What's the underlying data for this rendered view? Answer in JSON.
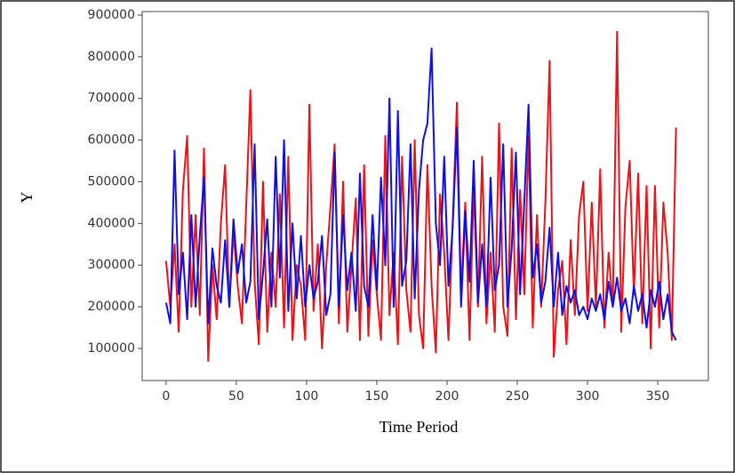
{
  "chart_data": {
    "type": "line",
    "xlabel": "Time Period",
    "ylabel": "Y",
    "x": [
      0,
      3,
      6,
      9,
      12,
      15,
      18,
      21,
      24,
      27,
      30,
      33,
      36,
      39,
      42,
      45,
      48,
      51,
      54,
      57,
      60,
      63,
      66,
      69,
      72,
      75,
      78,
      81,
      84,
      87,
      90,
      93,
      96,
      99,
      102,
      105,
      108,
      111,
      114,
      117,
      120,
      123,
      126,
      129,
      132,
      135,
      138,
      141,
      144,
      147,
      150,
      153,
      156,
      159,
      162,
      165,
      168,
      171,
      174,
      177,
      180,
      183,
      186,
      189,
      192,
      195,
      198,
      201,
      204,
      207,
      210,
      213,
      216,
      219,
      222,
      225,
      228,
      231,
      234,
      237,
      240,
      243,
      246,
      249,
      252,
      255,
      258,
      261,
      264,
      267,
      270,
      273,
      276,
      279,
      282,
      285,
      288,
      291,
      294,
      297,
      300,
      303,
      306,
      309,
      312,
      315,
      318,
      321,
      324,
      327,
      330,
      333,
      336,
      339,
      342,
      345,
      348,
      351,
      354,
      357,
      360,
      363
    ],
    "series": [
      {
        "color": "#e8141a",
        "values": [
          310000,
          200000,
          350000,
          140000,
          480000,
          610000,
          200000,
          420000,
          180000,
          580000,
          70000,
          300000,
          170000,
          400000,
          540000,
          200000,
          380000,
          250000,
          160000,
          440000,
          720000,
          260000,
          110000,
          500000,
          140000,
          330000,
          200000,
          470000,
          150000,
          560000,
          120000,
          300000,
          250000,
          120000,
          685000,
          190000,
          350000,
          100000,
          300000,
          440000,
          590000,
          160000,
          500000,
          140000,
          300000,
          460000,
          120000,
          540000,
          130000,
          360000,
          230000,
          120000,
          610000,
          180000,
          330000,
          110000,
          560000,
          240000,
          140000,
          600000,
          180000,
          100000,
          540000,
          250000,
          90000,
          470000,
          330000,
          120000,
          400000,
          690000,
          230000,
          450000,
          120000,
          490000,
          200000,
          560000,
          160000,
          330000,
          140000,
          640000,
          200000,
          130000,
          580000,
          170000,
          480000,
          230000,
          610000,
          150000,
          420000,
          200000,
          450000,
          790000,
          80000,
          240000,
          310000,
          110000,
          360000,
          180000,
          420000,
          500000,
          190000,
          450000,
          200000,
          530000,
          150000,
          330000,
          200000,
          860000,
          140000,
          440000,
          550000,
          230000,
          520000,
          160000,
          490000,
          100000,
          490000,
          150000,
          450000,
          330000,
          120000,
          630000
        ]
      },
      {
        "color": "#1010e0",
        "values": [
          210000,
          160000,
          575000,
          230000,
          330000,
          170000,
          420000,
          200000,
          370000,
          510000,
          160000,
          340000,
          250000,
          210000,
          360000,
          200000,
          410000,
          280000,
          350000,
          210000,
          260000,
          590000,
          170000,
          280000,
          410000,
          200000,
          560000,
          270000,
          600000,
          190000,
          400000,
          220000,
          370000,
          200000,
          300000,
          220000,
          260000,
          370000,
          180000,
          230000,
          570000,
          200000,
          420000,
          240000,
          330000,
          190000,
          520000,
          250000,
          200000,
          420000,
          240000,
          510000,
          300000,
          700000,
          200000,
          670000,
          250000,
          310000,
          590000,
          220000,
          480000,
          600000,
          640000,
          820000,
          400000,
          300000,
          560000,
          250000,
          390000,
          630000,
          200000,
          430000,
          260000,
          550000,
          210000,
          350000,
          200000,
          510000,
          240000,
          300000,
          590000,
          200000,
          340000,
          570000,
          230000,
          450000,
          685000,
          270000,
          350000,
          210000,
          260000,
          390000,
          200000,
          330000,
          180000,
          250000,
          210000,
          240000,
          180000,
          200000,
          170000,
          220000,
          190000,
          230000,
          170000,
          260000,
          200000,
          270000,
          190000,
          220000,
          160000,
          250000,
          190000,
          230000,
          150000,
          240000,
          200000,
          260000,
          170000,
          230000,
          140000,
          120000
        ]
      }
    ],
    "xlim": [
      -17,
      386
    ],
    "ylim": [
      23000,
      908500
    ],
    "xticks": [
      0,
      50,
      100,
      150,
      200,
      250,
      300,
      350
    ],
    "yticks": [
      100000,
      200000,
      300000,
      400000,
      500000,
      600000,
      700000,
      800000,
      900000
    ]
  }
}
